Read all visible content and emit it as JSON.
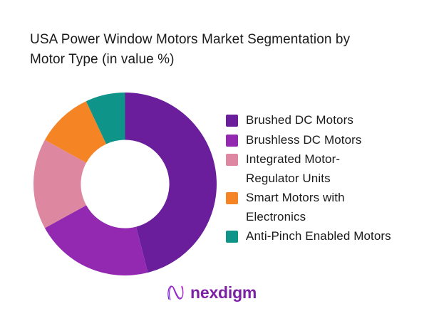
{
  "title": {
    "text": "USA Power Window Motors Market Segmentation by Motor Type (in value %)"
  },
  "chart_data": {
    "type": "pie",
    "subtype": "donut",
    "title": "USA Power Window Motors Market Segmentation by Motor Type (in value %)",
    "unit": "value %",
    "start_angle_deg": 0,
    "direction": "clockwise",
    "inner_radius_ratio": 0.483,
    "legend_position": "right",
    "segments": [
      {
        "label": "Brushed DC Motors",
        "value": 46,
        "color": "#6a1e9b"
      },
      {
        "label": "Brushless DC Motors",
        "value": 21,
        "color": "#9328b1"
      },
      {
        "label": "Integrated Motor-Regulator Units",
        "value": 16,
        "color": "#de87a1"
      },
      {
        "label": "Smart Motors with Electronics",
        "value": 10,
        "color": "#f58425"
      },
      {
        "label": "Anti-Pinch Enabled Motors",
        "value": 7,
        "color": "#0e9488"
      }
    ]
  },
  "footer": {
    "brand": "nexdigm",
    "logo_icon": "nexdigm-n-mark",
    "brand_color": "#7c20a4",
    "mark_gradient": [
      "#6818c9",
      "#c026d3"
    ]
  }
}
